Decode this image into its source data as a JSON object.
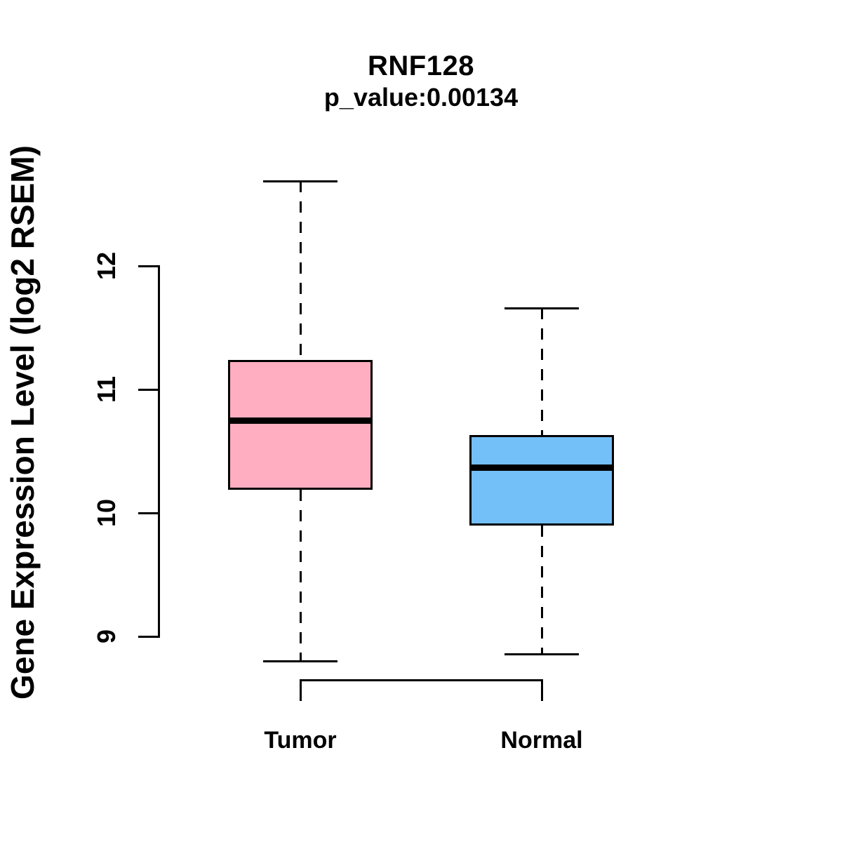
{
  "title": "RNF128",
  "subtitle": "p_value:0.00134",
  "ylabel": "Gene Expression Level (log2 RSEM)",
  "colors": {
    "tumor_fill": "#FFAEC1",
    "normal_fill": "#73BFF7",
    "line": "#000000",
    "background": "#FFFFFF"
  },
  "chart_data": {
    "type": "boxplot",
    "title": "RNF128",
    "subtitle": "p_value:0.00134",
    "ylabel": "Gene Expression Level (log2 RSEM)",
    "xlabel": "",
    "categories": [
      "Tumor",
      "Normal"
    ],
    "yticks": [
      9,
      10,
      11,
      12
    ],
    "ylim": [
      8.5,
      12.9
    ],
    "grid": false,
    "legend": "none",
    "series": [
      {
        "name": "Tumor",
        "whisker_low": 8.8,
        "q1": 10.19,
        "median": 10.75,
        "q3": 11.24,
        "whisker_high": 12.69,
        "fill": "#FFAEC1"
      },
      {
        "name": "Normal",
        "whisker_low": 8.86,
        "q1": 9.9,
        "median": 10.37,
        "q3": 10.63,
        "whisker_high": 11.66,
        "fill": "#73BFF7"
      }
    ]
  }
}
